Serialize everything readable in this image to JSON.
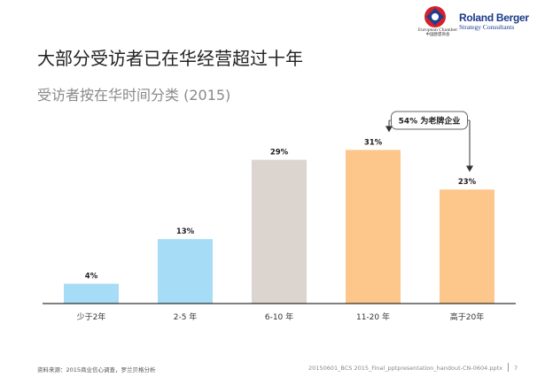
{
  "header": {
    "chamber_name": "European Chamber",
    "chamber_name_cn": "中国欧盟商会",
    "brand_name": "Roland Berger",
    "brand_tagline": "Strategy Consultants"
  },
  "colors": {
    "blue": "#a6dcf5",
    "grey": "#dcd4cf",
    "orange": "#fdc68b",
    "axis": "#000000",
    "callout_border": "#666666"
  },
  "chart_data": {
    "type": "bar",
    "title": "大部分受访者已在华经营超过十年",
    "subtitle": "受访者按在华时间分类 (2015)",
    "categories": [
      "少于2年",
      "2-5 年",
      "6-10 年",
      "11-20 年",
      "高于20年"
    ],
    "values": [
      4,
      13,
      29,
      31,
      23
    ],
    "value_labels": [
      "4%",
      "13%",
      "29%",
      "31%",
      "23%"
    ],
    "bar_colors": [
      "#a6dcf5",
      "#a6dcf5",
      "#dcd4cf",
      "#fdc68b",
      "#fdc68b"
    ],
    "ylim": [
      0,
      33
    ],
    "xlabel": "",
    "ylabel": "",
    "grid": false,
    "annotation": {
      "text": "54% 为老牌企业",
      "spans_categories": [
        3,
        4
      ]
    }
  },
  "footer": {
    "source": "资料来源：2015商业信心调查，罗兰贝格分析",
    "file": "20150601_BCS 2015_Final_pptpresentation_handout-CN-0604.pptx",
    "page": "7"
  }
}
